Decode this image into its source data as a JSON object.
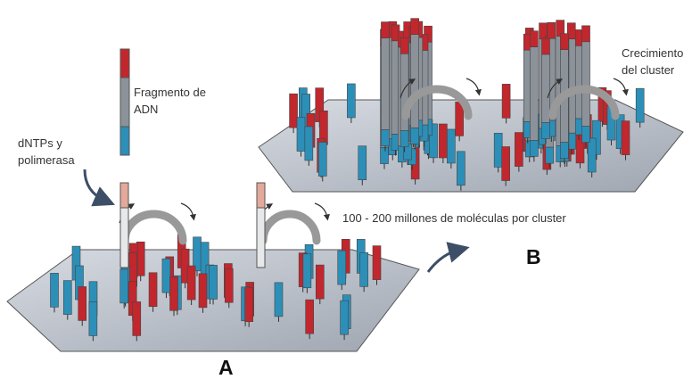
{
  "labels": {
    "fragment": [
      "Fragmento de",
      "ADN"
    ],
    "reagents": [
      "dNTPs y",
      "polimerasa"
    ],
    "growth": [
      "Crecimiento",
      "del cluster"
    ],
    "molecules": "100 - 200 millones de moléculas por cluster",
    "panel_a": "A",
    "panel_b": "B"
  }
}
